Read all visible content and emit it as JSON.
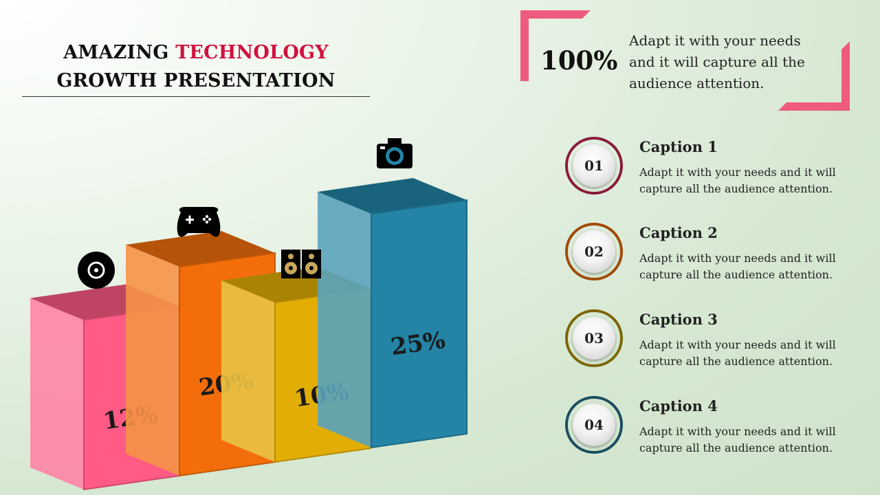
{
  "title": {
    "line1_a": "AMAZING ",
    "line1_b": "TECHNOLOGY",
    "line2": "GROWTH PRESENTATION"
  },
  "highlight": {
    "value": "100%",
    "text": "Adapt it with your needs and it will capture all the audience attention."
  },
  "captions": [
    {
      "number": "01",
      "title": "Caption 1",
      "text": "Adapt it with your needs and it will capture all the audience attention.",
      "ring_color": "#8a1b3a"
    },
    {
      "number": "02",
      "title": "Caption 2",
      "text": "Adapt it with your needs and it will capture all the audience attention.",
      "ring_color": "#a04a08"
    },
    {
      "number": "03",
      "title": "Caption 3",
      "text": "Adapt it with your needs and it will capture all the audience attention.",
      "ring_color": "#7c6606"
    },
    {
      "number": "04",
      "title": "Caption 4",
      "text": "Adapt it with your needs and it will capture all the audience attention.",
      "ring_color": "#1b4d5f"
    }
  ],
  "chart_data": {
    "type": "bar",
    "categories": [
      "12%",
      "20%",
      "10%",
      "25%"
    ],
    "values": [
      12,
      20,
      10,
      25
    ],
    "labels": [
      "12%",
      "20%",
      "10%",
      "25%"
    ],
    "icons": [
      "disc-icon",
      "gamepad-icon",
      "speaker-icon",
      "camera-icon"
    ],
    "colors": [
      "#ff5b85",
      "#f36e0a",
      "#e2ae06",
      "#2384a5"
    ]
  },
  "colors": {
    "accent": "#d1113f",
    "frame": "#ef5b7c"
  }
}
